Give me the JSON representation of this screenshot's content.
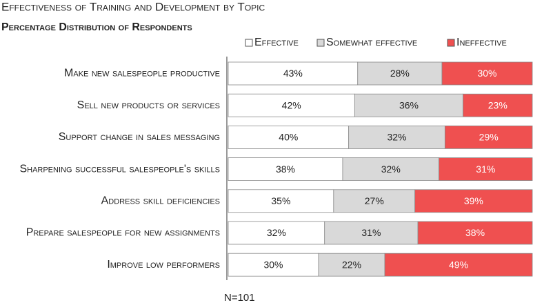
{
  "chart_data": {
    "type": "stacked_bar_horizontal",
    "title": "Effectiveness of Training and Development by Topic",
    "subtitle": "Percentage Distribution of Respondents",
    "categories": [
      "Make new salespeople productive",
      "Sell new products or services",
      "Support change in sales messaging",
      "Sharpening successful salespeople's skills",
      "Address skill deficiencies",
      "Prepare salespeople for new assignments",
      "Improve low performers"
    ],
    "series": [
      {
        "name": "Effective",
        "color": "#ffffff",
        "values": [
          43,
          42,
          40,
          38,
          35,
          32,
          30
        ],
        "value_labels": [
          "43%",
          "42%",
          "40%",
          "38%",
          "35%",
          "32%",
          "30%"
        ]
      },
      {
        "name": "Somewhat effective",
        "color": "#d9d9d9",
        "values": [
          28,
          36,
          32,
          32,
          27,
          31,
          22
        ],
        "value_labels": [
          "28%",
          "36%",
          "32%",
          "32%",
          "27%",
          "31%",
          "22%"
        ]
      },
      {
        "name": "Ineffective",
        "color": "#ef5050",
        "values": [
          30,
          23,
          29,
          31,
          39,
          38,
          49
        ],
        "value_labels": [
          "30%",
          "23%",
          "29%",
          "31%",
          "39%",
          "38%",
          "49%"
        ]
      }
    ],
    "xlim": [
      0,
      101
    ],
    "footnote": "N=101"
  }
}
